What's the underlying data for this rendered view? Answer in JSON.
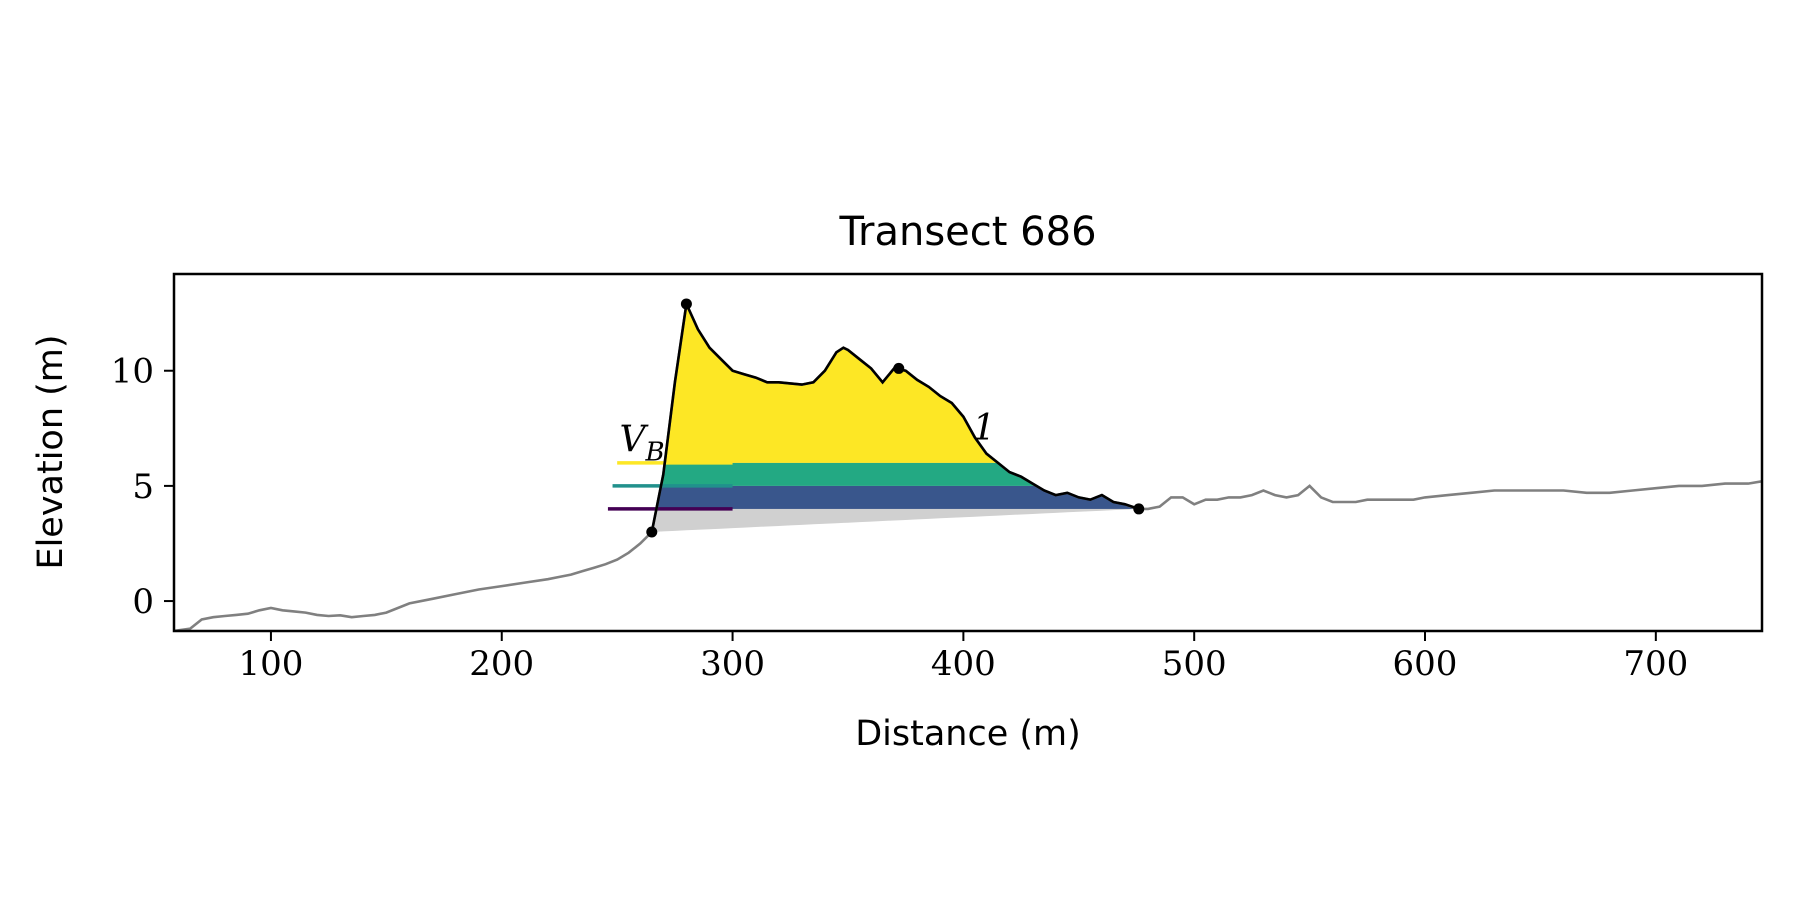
{
  "chart_data": {
    "type": "area",
    "title": "Transect 686",
    "xlabel": "Distance (m)",
    "ylabel": "Elevation (m)",
    "xlim": [
      58,
      746
    ],
    "ylim": [
      -1.3,
      14.2
    ],
    "xticks": [
      100,
      200,
      300,
      400,
      500,
      600,
      700
    ],
    "yticks": [
      0,
      5,
      10
    ],
    "grid": false,
    "legend": "none",
    "colors": {
      "profile": "#808080",
      "dune_outline": "#000000",
      "base_fill": "#d0d0d0",
      "band_low": "#48186a",
      "band_mid": "#39568c",
      "band_teal": "#23a983",
      "band_top": "#fde725",
      "level_line_top": "#fde725",
      "level_line_mid": "#21918c",
      "level_line_low": "#440154"
    },
    "profile": {
      "x": [
        58,
        65,
        70,
        75,
        80,
        85,
        90,
        95,
        100,
        105,
        110,
        115,
        120,
        125,
        130,
        135,
        140,
        145,
        150,
        160,
        170,
        180,
        190,
        200,
        210,
        220,
        225,
        230,
        235,
        240,
        245,
        250,
        255,
        260,
        265,
        270,
        275,
        280,
        285,
        290,
        295,
        300,
        305,
        310,
        315,
        320,
        325,
        330,
        335,
        340,
        345,
        348,
        350,
        355,
        360,
        365,
        370,
        375,
        380,
        385,
        390,
        395,
        400,
        405,
        410,
        415,
        420,
        425,
        430,
        435,
        440,
        445,
        450,
        455,
        460,
        465,
        470,
        475,
        480,
        485,
        490,
        495,
        500,
        505,
        510,
        515,
        520,
        525,
        530,
        535,
        540,
        545,
        550,
        555,
        560,
        565,
        570,
        575,
        580,
        585,
        590,
        595,
        600,
        610,
        620,
        630,
        640,
        650,
        655,
        660,
        670,
        680,
        690,
        700,
        710,
        720,
        730,
        740,
        746
      ],
      "y": [
        -1.3,
        -1.2,
        -0.8,
        -0.7,
        -0.65,
        -0.6,
        -0.55,
        -0.4,
        -0.3,
        -0.4,
        -0.45,
        -0.5,
        -0.6,
        -0.65,
        -0.62,
        -0.7,
        -0.65,
        -0.6,
        -0.5,
        -0.1,
        0.1,
        0.3,
        0.5,
        0.65,
        0.8,
        0.95,
        1.05,
        1.15,
        1.3,
        1.45,
        1.6,
        1.8,
        2.1,
        2.5,
        3.0,
        5.5,
        9.5,
        12.9,
        11.8,
        11.0,
        10.5,
        10.0,
        9.85,
        9.7,
        9.5,
        9.5,
        9.45,
        9.4,
        9.5,
        10.0,
        10.8,
        11.0,
        10.9,
        10.5,
        10.1,
        9.5,
        10.1,
        10.0,
        9.6,
        9.3,
        8.9,
        8.6,
        8.0,
        7.1,
        6.4,
        6.0,
        5.6,
        5.4,
        5.1,
        4.8,
        4.6,
        4.7,
        4.5,
        4.4,
        4.6,
        4.3,
        4.2,
        4.0,
        4.0,
        4.1,
        4.5,
        4.5,
        4.2,
        4.4,
        4.4,
        4.5,
        4.5,
        4.6,
        4.8,
        4.6,
        4.5,
        4.6,
        5.0,
        4.5,
        4.3,
        4.3,
        4.3,
        4.4,
        4.4,
        4.4,
        4.4,
        4.4,
        4.5,
        4.6,
        4.7,
        4.8,
        4.8,
        4.8,
        4.8,
        4.8,
        4.7,
        4.7,
        4.8,
        4.9,
        5.0,
        5.0,
        5.1,
        5.1,
        5.2
      ]
    },
    "dune": {
      "x": [
        265,
        270,
        275,
        280,
        285,
        290,
        295,
        300,
        305,
        310,
        315,
        320,
        325,
        330,
        335,
        340,
        345,
        348,
        350,
        355,
        360,
        365,
        370,
        375,
        380,
        385,
        390,
        395,
        400,
        405,
        410,
        415,
        420,
        425,
        430,
        435,
        440,
        445,
        450,
        455,
        460,
        465,
        470,
        476
      ],
      "y": [
        3.0,
        5.5,
        9.5,
        12.9,
        11.8,
        11.0,
        10.5,
        10.0,
        9.85,
        9.7,
        9.5,
        9.5,
        9.45,
        9.4,
        9.5,
        10.0,
        10.8,
        11.0,
        10.9,
        10.5,
        10.1,
        9.5,
        10.1,
        10.0,
        9.6,
        9.3,
        8.9,
        8.6,
        8.0,
        7.1,
        6.4,
        6.0,
        5.6,
        5.4,
        5.1,
        4.8,
        4.6,
        4.7,
        4.5,
        4.4,
        4.6,
        4.3,
        4.2,
        4.0
      ]
    },
    "points": [
      {
        "x": 265,
        "y": 3.0
      },
      {
        "x": 280,
        "y": 12.9
      },
      {
        "x": 372,
        "y": 10.1
      },
      {
        "x": 476,
        "y": 4.0
      }
    ],
    "base_line": {
      "x0": 265,
      "y0": 3.0,
      "x1": 476,
      "y1": 4.0
    },
    "level_bands": [
      {
        "level": 6.0,
        "color_key": "band_top"
      },
      {
        "level": 5.0,
        "color_key": "band_teal"
      },
      {
        "level": 4.0,
        "color_key": "band_mid"
      }
    ],
    "level_lines": [
      {
        "level": 6.0,
        "x_start": 250,
        "color_key": "level_line_top"
      },
      {
        "level": 5.0,
        "x_start": 248,
        "color_key": "level_line_mid"
      },
      {
        "level": 4.0,
        "x_start": 246,
        "color_key": "level_line_low"
      }
    ],
    "annotations": [
      {
        "text": "V",
        "sub": "B",
        "x": 251,
        "y": 6.5
      },
      {
        "text": "1",
        "x": 404,
        "y": 7.0
      }
    ]
  }
}
